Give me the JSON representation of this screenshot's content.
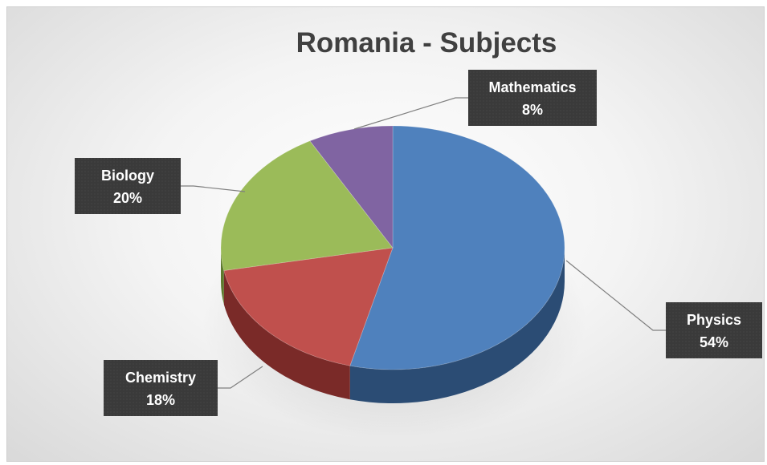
{
  "chart_data": {
    "type": "pie",
    "title": "Romania - Subjects",
    "slices": [
      {
        "label": "Physics",
        "value": 54,
        "value_label": "54%",
        "color": "#4f81bd",
        "side_color": "#2b4c74"
      },
      {
        "label": "Chemistry",
        "value": 18,
        "value_label": "18%",
        "color": "#c0504d",
        "side_color": "#7a2a28"
      },
      {
        "label": "Biology",
        "value": 20,
        "value_label": "20%",
        "color": "#9bbb59",
        "side_color": "#5e7a2e"
      },
      {
        "label": "Mathematics",
        "value": 8,
        "value_label": "8%",
        "color": "#8064a2",
        "side_color": "#4e3a68"
      }
    ],
    "legend": "none",
    "style": "3d-pie"
  }
}
